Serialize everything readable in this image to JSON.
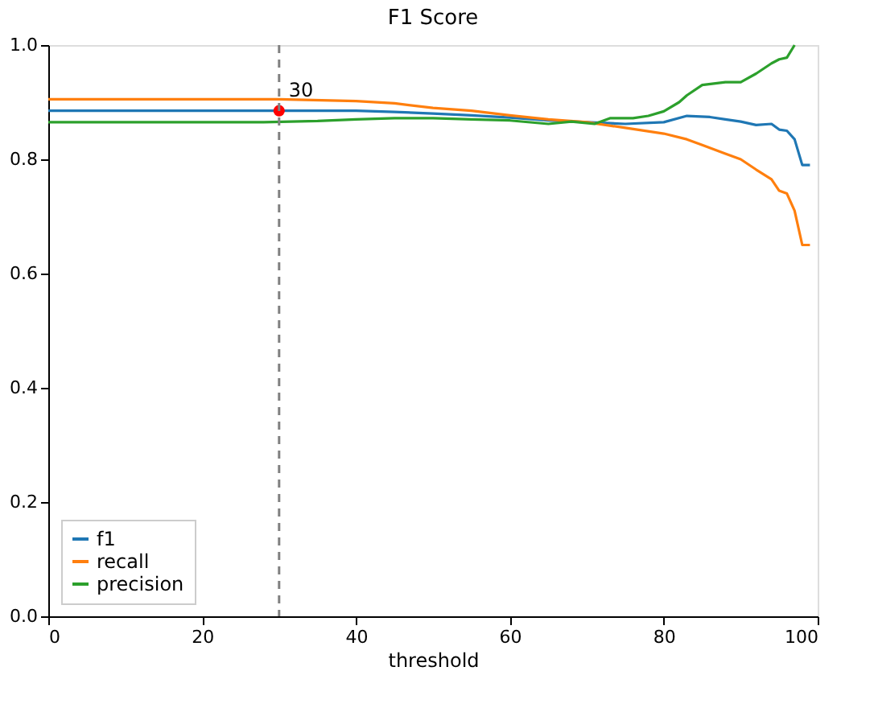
{
  "chart_data": {
    "type": "line",
    "title": "F1 Score",
    "xlabel": "threshold",
    "xlim": [
      0,
      100
    ],
    "xticks": [
      0,
      20,
      40,
      60,
      80,
      100
    ],
    "ylim": [
      0,
      1.0
    ],
    "yticks": [
      {
        "value": 0,
        "label": "0.0"
      },
      0.2,
      0.4,
      0.6,
      0.8,
      {
        "value": 1,
        "label": "1.0"
      }
    ],
    "grid": false,
    "legend": "bottom left",
    "marker": "none",
    "line_style": "solid",
    "series": [
      {
        "name": "f1",
        "color": "#1f77b4",
        "x": [
          0,
          10,
          20,
          30,
          40,
          45,
          50,
          55,
          60,
          65,
          70,
          75,
          80,
          83,
          86,
          88,
          90,
          92,
          94,
          95,
          96,
          97,
          98,
          99
        ],
        "values": [
          0.885,
          0.885,
          0.885,
          0.885,
          0.885,
          0.883,
          0.88,
          0.877,
          0.873,
          0.868,
          0.865,
          0.862,
          0.865,
          0.876,
          0.874,
          0.87,
          0.866,
          0.86,
          0.862,
          0.852,
          0.85,
          0.835,
          0.79,
          0.79
        ]
      },
      {
        "name": "recall",
        "color": "#ff7f0e",
        "x": [
          0,
          10,
          20,
          30,
          40,
          45,
          50,
          55,
          60,
          65,
          70,
          75,
          80,
          83,
          85,
          88,
          90,
          92,
          94,
          95,
          96,
          97,
          98,
          99
        ],
        "values": [
          0.905,
          0.905,
          0.905,
          0.905,
          0.902,
          0.898,
          0.89,
          0.885,
          0.877,
          0.87,
          0.865,
          0.855,
          0.845,
          0.835,
          0.825,
          0.81,
          0.8,
          0.782,
          0.765,
          0.745,
          0.74,
          0.71,
          0.65,
          0.65
        ]
      },
      {
        "name": "precision",
        "color": "#2ca02c",
        "x": [
          0,
          10,
          20,
          28,
          35,
          40,
          45,
          50,
          55,
          60,
          65,
          68,
          71,
          73,
          76,
          78,
          80,
          82,
          83,
          85,
          88,
          90,
          92,
          94,
          95,
          96,
          97
        ],
        "values": [
          0.865,
          0.865,
          0.865,
          0.865,
          0.867,
          0.87,
          0.872,
          0.872,
          0.87,
          0.868,
          0.862,
          0.866,
          0.862,
          0.872,
          0.872,
          0.876,
          0.884,
          0.9,
          0.912,
          0.93,
          0.935,
          0.935,
          0.95,
          0.968,
          0.975,
          0.978,
          1.0
        ]
      },
      {
        "type": "scatter",
        "color": "#ff0000",
        "marker": "circle",
        "x": [
          30
        ],
        "values": [
          0.885
        ]
      }
    ],
    "ref_lines": [
      {
        "axis": "x",
        "value": 30,
        "color": "#808080",
        "line_style": "dashed"
      }
    ],
    "annotations": [
      {
        "text": "30",
        "x": 30,
        "y": 0.885
      }
    ]
  }
}
